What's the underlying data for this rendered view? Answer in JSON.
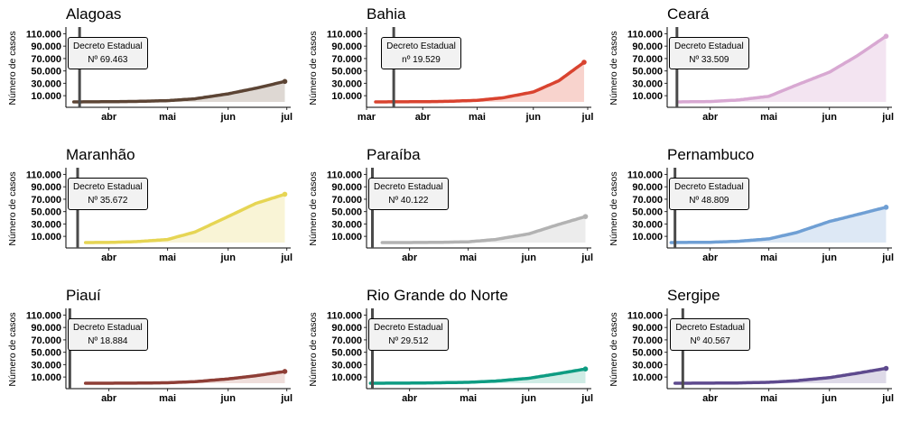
{
  "chart_data": [
    {
      "type": "area",
      "title": "Alagoas",
      "ylabel": "Número de casos",
      "x_ticks": [
        "abr",
        "mai",
        "jun",
        "jul"
      ],
      "y_ticks": [
        "10.000",
        "30.000",
        "50.000",
        "70.000",
        "90.000",
        "110.000"
      ],
      "ylim": [
        0,
        115000
      ],
      "xlim": [
        "2020-03-10",
        "2020-07-03"
      ],
      "color": "#5c4434",
      "fill": "#ded8d3",
      "decree": {
        "line1": "Decreto Estadual",
        "line2": "Nº 69.463",
        "date": "2020-03-17"
      },
      "x": [
        "2020-03-14",
        "2020-04-01",
        "2020-04-15",
        "2020-05-01",
        "2020-05-15",
        "2020-06-01",
        "2020-06-15",
        "2020-06-30"
      ],
      "values": [
        0,
        300,
        800,
        2000,
        5000,
        13000,
        22000,
        33000
      ]
    },
    {
      "type": "area",
      "title": "Bahia",
      "ylabel": "Número de casos",
      "x_ticks": [
        "mar",
        "abr",
        "mai",
        "jun",
        "jul"
      ],
      "y_ticks": [
        "10.000",
        "30.000",
        "50.000",
        "70.000",
        "90.000",
        "110.000"
      ],
      "ylim": [
        0,
        115000
      ],
      "xlim": [
        "2020-03-01",
        "2020-07-03"
      ],
      "color": "#d9432f",
      "fill": "#f8d3cd",
      "decree": {
        "line1": "Decreto Estadual",
        "line2": "nº 19.529",
        "date": "2020-03-16"
      },
      "x": [
        "2020-03-06",
        "2020-04-01",
        "2020-04-15",
        "2020-05-01",
        "2020-05-15",
        "2020-06-01",
        "2020-06-15",
        "2020-06-29"
      ],
      "values": [
        0,
        300,
        900,
        2500,
        6500,
        16000,
        34000,
        64000
      ]
    },
    {
      "type": "area",
      "title": "Ceará",
      "ylabel": "Número de casos",
      "x_ticks": [
        "abr",
        "mai",
        "jun",
        "jul"
      ],
      "y_ticks": [
        "10.000",
        "30.000",
        "50.000",
        "70.000",
        "90.000",
        "110.000"
      ],
      "ylim": [
        0,
        115000
      ],
      "xlim": [
        "2020-03-10",
        "2020-07-03"
      ],
      "color": "#d8a8d2",
      "fill": "#f3e4f1",
      "decree": {
        "line1": "Decreto Estadual",
        "line2": "Nº 33.509",
        "date": "2020-03-15"
      },
      "x": [
        "2020-03-16",
        "2020-04-01",
        "2020-04-15",
        "2020-05-01",
        "2020-05-15",
        "2020-06-01",
        "2020-06-15",
        "2020-06-30"
      ],
      "values": [
        0,
        600,
        3000,
        9000,
        27000,
        48000,
        74000,
        106000
      ]
    },
    {
      "type": "area",
      "title": "Maranhão",
      "ylabel": "Número de casos",
      "x_ticks": [
        "abr",
        "mai",
        "jun",
        "jul"
      ],
      "y_ticks": [
        "10.000",
        "30.000",
        "50.000",
        "70.000",
        "90.000",
        "110.000"
      ],
      "ylim": [
        0,
        115000
      ],
      "xlim": [
        "2020-03-10",
        "2020-07-03"
      ],
      "color": "#e6d554",
      "fill": "#f9f4d6",
      "decree": {
        "line1": "Decreto Estadual",
        "line2": "Nº 35.672",
        "date": "2020-03-16"
      },
      "x": [
        "2020-03-20",
        "2020-04-01",
        "2020-04-15",
        "2020-05-01",
        "2020-05-15",
        "2020-06-01",
        "2020-06-15",
        "2020-06-30"
      ],
      "values": [
        0,
        200,
        1500,
        5000,
        17000,
        42000,
        63000,
        78000
      ]
    },
    {
      "type": "area",
      "title": "Paraíba",
      "ylabel": "Número de casos",
      "x_ticks": [
        "abr",
        "mai",
        "jun",
        "jul"
      ],
      "y_ticks": [
        "10.000",
        "30.000",
        "50.000",
        "70.000",
        "90.000",
        "110.000"
      ],
      "ylim": [
        0,
        115000
      ],
      "xlim": [
        "2020-03-10",
        "2020-07-03"
      ],
      "color": "#b2b2b2",
      "fill": "#ececec",
      "decree": {
        "line1": "Decreto Estadual",
        "line2": "Nº 40.122",
        "date": "2020-03-13"
      },
      "x": [
        "2020-03-18",
        "2020-04-01",
        "2020-04-15",
        "2020-05-01",
        "2020-05-15",
        "2020-06-01",
        "2020-06-15",
        "2020-06-30"
      ],
      "values": [
        0,
        50,
        300,
        1200,
        5000,
        14000,
        28000,
        42000
      ]
    },
    {
      "type": "area",
      "title": "Pernambuco",
      "ylabel": "Número de casos",
      "x_ticks": [
        "abr",
        "mai",
        "jun",
        "jul"
      ],
      "y_ticks": [
        "10.000",
        "30.000",
        "50.000",
        "70.000",
        "90.000",
        "110.000"
      ],
      "ylim": [
        0,
        115000
      ],
      "xlim": [
        "2020-03-10",
        "2020-07-03"
      ],
      "color": "#6f9fd4",
      "fill": "#dde8f5",
      "decree": {
        "line1": "Decreto Estadual",
        "line2": "Nº 48.809",
        "date": "2020-03-14"
      },
      "x": [
        "2020-03-12",
        "2020-04-01",
        "2020-04-15",
        "2020-05-01",
        "2020-05-15",
        "2020-06-01",
        "2020-06-15",
        "2020-06-30"
      ],
      "values": [
        0,
        500,
        2000,
        6000,
        16000,
        34000,
        45000,
        57000
      ]
    },
    {
      "type": "area",
      "title": "Piauí",
      "ylabel": "Número de casos",
      "x_ticks": [
        "abr",
        "mai",
        "jun",
        "jul"
      ],
      "y_ticks": [
        "10.000",
        "30.000",
        "50.000",
        "70.000",
        "90.000",
        "110.000"
      ],
      "ylim": [
        0,
        115000
      ],
      "xlim": [
        "2020-03-10",
        "2020-07-03"
      ],
      "color": "#8e3e36",
      "fill": "#efdedb",
      "decree": {
        "line1": "Decreto Estadual",
        "line2": "Nº 18.884",
        "date": "2020-03-12"
      },
      "x": [
        "2020-03-20",
        "2020-04-01",
        "2020-04-15",
        "2020-05-01",
        "2020-05-15",
        "2020-06-01",
        "2020-06-15",
        "2020-06-30"
      ],
      "values": [
        0,
        50,
        200,
        800,
        2500,
        7000,
        12000,
        19000
      ]
    },
    {
      "type": "area",
      "title": "Rio Grande do Norte",
      "ylabel": "Número de casos",
      "x_ticks": [
        "abr",
        "mai",
        "jun",
        "jul"
      ],
      "y_ticks": [
        "10.000",
        "30.000",
        "50.000",
        "70.000",
        "90.000",
        "110.000"
      ],
      "ylim": [
        0,
        115000
      ],
      "xlim": [
        "2020-03-10",
        "2020-07-03"
      ],
      "color": "#0e9c82",
      "fill": "#cfece5",
      "decree": {
        "line1": "Decreto Estadual",
        "line2": "Nº 29.512",
        "date": "2020-03-13"
      },
      "x": [
        "2020-03-12",
        "2020-04-01",
        "2020-04-15",
        "2020-05-01",
        "2020-05-15",
        "2020-06-01",
        "2020-06-15",
        "2020-06-30"
      ],
      "values": [
        0,
        200,
        700,
        1500,
        3500,
        8000,
        15000,
        23000
      ]
    },
    {
      "type": "area",
      "title": "Sergipe",
      "ylabel": "Número de casos",
      "x_ticks": [
        "abr",
        "mai",
        "jun",
        "jul"
      ],
      "y_ticks": [
        "10.000",
        "30.000",
        "50.000",
        "70.000",
        "90.000",
        "110.000"
      ],
      "ylim": [
        0,
        115000
      ],
      "xlim": [
        "2020-03-10",
        "2020-07-03"
      ],
      "color": "#5e4a8e",
      "fill": "#dedae8",
      "decree": {
        "line1": "Decreto Estadual",
        "line2": "Nº 40.567",
        "date": "2020-03-18"
      },
      "x": [
        "2020-03-14",
        "2020-04-01",
        "2020-04-15",
        "2020-05-01",
        "2020-05-15",
        "2020-06-01",
        "2020-06-15",
        "2020-06-30"
      ],
      "values": [
        0,
        150,
        500,
        1500,
        4000,
        9000,
        16000,
        24000
      ]
    }
  ]
}
